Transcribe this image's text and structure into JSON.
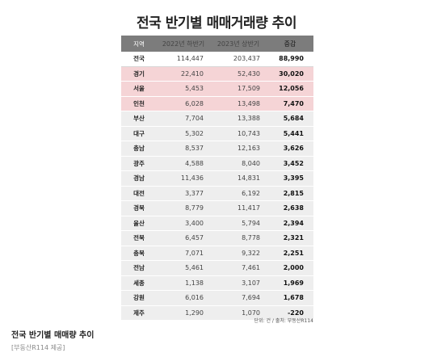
{
  "title": "전국 반기별 매매거래량 추이",
  "table": {
    "headers": [
      "지역",
      "2022년 하반기",
      "2023년 상반기",
      "증감"
    ],
    "rows": [
      {
        "region": "전국",
        "h2022": "114,447",
        "h2023": "203,437",
        "change": "88,990"
      },
      {
        "region": "경기",
        "h2022": "22,410",
        "h2023": "52,430",
        "change": "30,020"
      },
      {
        "region": "서울",
        "h2022": "5,453",
        "h2023": "17,509",
        "change": "12,056"
      },
      {
        "region": "인천",
        "h2022": "6,028",
        "h2023": "13,498",
        "change": "7,470"
      },
      {
        "region": "부산",
        "h2022": "7,704",
        "h2023": "13,388",
        "change": "5,684"
      },
      {
        "region": "대구",
        "h2022": "5,302",
        "h2023": "10,743",
        "change": "5,441"
      },
      {
        "region": "충남",
        "h2022": "8,537",
        "h2023": "12,163",
        "change": "3,626"
      },
      {
        "region": "광주",
        "h2022": "4,588",
        "h2023": "8,040",
        "change": "3,452"
      },
      {
        "region": "경남",
        "h2022": "11,436",
        "h2023": "14,831",
        "change": "3,395"
      },
      {
        "region": "대전",
        "h2022": "3,377",
        "h2023": "6,192",
        "change": "2,815"
      },
      {
        "region": "경북",
        "h2022": "8,779",
        "h2023": "11,417",
        "change": "2,638"
      },
      {
        "region": "울산",
        "h2022": "3,400",
        "h2023": "5,794",
        "change": "2,394"
      },
      {
        "region": "전북",
        "h2022": "6,457",
        "h2023": "8,778",
        "change": "2,321"
      },
      {
        "region": "충북",
        "h2022": "7,071",
        "h2023": "9,322",
        "change": "2,251"
      },
      {
        "region": "전남",
        "h2022": "5,461",
        "h2023": "7,461",
        "change": "2,000"
      },
      {
        "region": "세종",
        "h2022": "1,138",
        "h2023": "3,107",
        "change": "1,969"
      },
      {
        "region": "강원",
        "h2022": "6,016",
        "h2023": "7,694",
        "change": "1,678"
      },
      {
        "region": "제주",
        "h2022": "1,290",
        "h2023": "1,070",
        "change": "-220"
      }
    ]
  },
  "source": "단위: 건 / 출처: 부동산R114",
  "caption": "전국 반기별 매매량 추이",
  "credit": "[부동산R114 제공]",
  "colors": {
    "header_bg": "#7c7c7c",
    "highlight": "#f5d4d6",
    "row_bg": "#eeeeee"
  }
}
